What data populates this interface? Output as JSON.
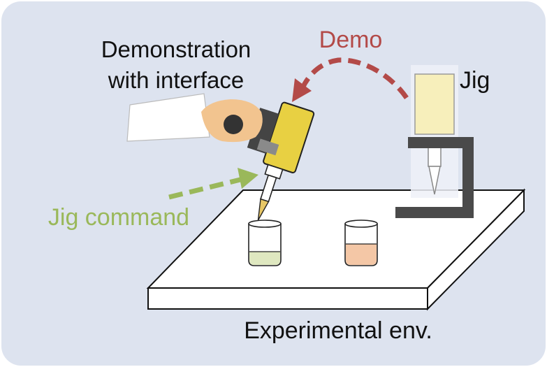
{
  "labels": {
    "demonstration": "Demonstration",
    "with_interface": "with interface",
    "demo": "Demo",
    "jig": "Jig",
    "jig_command": "Jig command",
    "experimental_env": "Experimental env."
  },
  "colors": {
    "panel_bg": "#dde3ef",
    "demo_arrow": "#b34a48",
    "jig_command_arrow": "#9ab85a",
    "device_yellow": "#e8d042",
    "jig_reservoir": "#f7efbb",
    "jig_frame": "#4a4a4a",
    "skin": "#f2c48f",
    "left_liquid": "#dfe8c0",
    "right_liquid": "#f4c7a6"
  }
}
